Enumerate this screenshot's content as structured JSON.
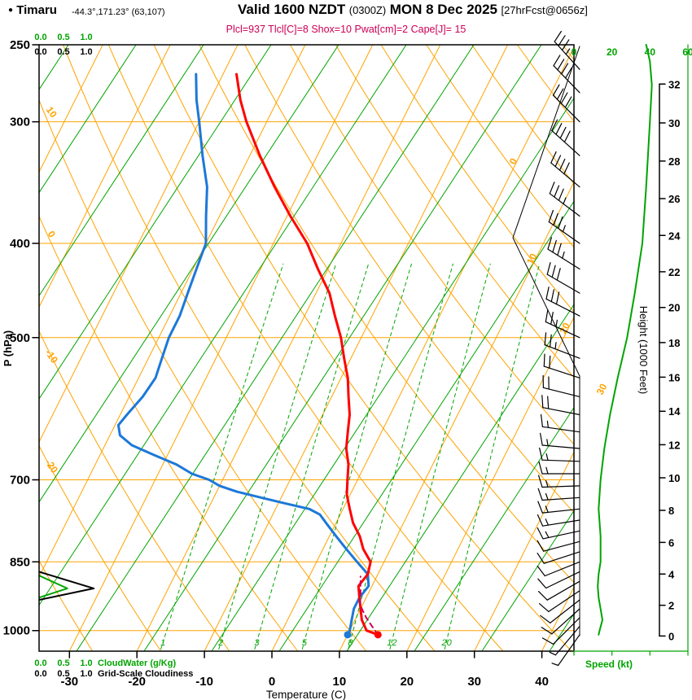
{
  "header": {
    "station": "Timaru",
    "coords": "-44.3°,171.23° (63,107)",
    "valid_prefix": "Valid 1600 NZDT",
    "valid_utc": "(0300Z)",
    "valid_date": "MON 8 Dec 2025",
    "fcst_tag": "[27hrFcst@0656z]",
    "params": "Plcl=937 Tlcl[C]=8 Shox=10 Pwat[cm]=2 Cape[J]= 15"
  },
  "axes": {
    "pressure_label": "P (hPa)",
    "pressure_ticks": [
      250,
      300,
      400,
      500,
      700,
      850,
      1000
    ],
    "temperature_label": "Temperature (C)",
    "temperature_ticks": [
      -30,
      -20,
      -10,
      0,
      10,
      20,
      30,
      40
    ],
    "height_label": "Height (1000 Feet)",
    "height_ticks": [
      0,
      2,
      4,
      6,
      8,
      10,
      12,
      14,
      16,
      18,
      20,
      22,
      24,
      26,
      28,
      30,
      32
    ],
    "speed_label": "Speed (kt)",
    "speed_ticks": [
      0,
      20,
      40,
      60
    ],
    "cloudwater_label": "CloudWater (g/Kg)",
    "cloudiness_label": "Grid-Scale Cloudiness",
    "cloud_scale_ticks": [
      "0.0",
      "0.5",
      "1.0"
    ],
    "dry_adiabat_labels": [
      10,
      0,
      -10,
      -20
    ],
    "isotherm_labels": [
      0,
      10,
      20,
      30
    ],
    "mixing_ratio_labels": [
      1,
      2,
      3,
      5,
      8,
      12,
      20
    ]
  },
  "colors": {
    "grid_orange": "#FFA300",
    "green": "#00A400",
    "temperature_red": "#FF0000",
    "dewpoint_blue": "#1C78D8",
    "parcel_crimson": "#CC0055",
    "black": "#000000",
    "background": "#FFFFFF"
  },
  "chart_data": {
    "type": "line",
    "subtype": "skew-t-log-p-sounding",
    "title": "Timaru atmospheric sounding",
    "pressure_axis_hpa": [
      1050,
      250
    ],
    "temperature_axis_c": [
      -35,
      45
    ],
    "height_axis_kft": [
      0,
      32
    ],
    "speed_axis_kt": [
      0,
      60
    ],
    "series": [
      {
        "name": "temperature_c",
        "points": [
          [
            1010,
            14.5
          ],
          [
            1000,
            12.5
          ],
          [
            975,
            11
          ],
          [
            950,
            10
          ],
          [
            925,
            9
          ],
          [
            900,
            8
          ],
          [
            875,
            8.5
          ],
          [
            850,
            8
          ],
          [
            825,
            6
          ],
          [
            800,
            4.5
          ],
          [
            775,
            2.5
          ],
          [
            750,
            1
          ],
          [
            725,
            -0.5
          ],
          [
            700,
            -1.5
          ],
          [
            675,
            -2.5
          ],
          [
            650,
            -4
          ],
          [
            625,
            -5
          ],
          [
            600,
            -6
          ],
          [
            575,
            -7.5
          ],
          [
            550,
            -9
          ],
          [
            525,
            -11
          ],
          [
            500,
            -13
          ],
          [
            475,
            -15.5
          ],
          [
            450,
            -18
          ],
          [
            425,
            -21.5
          ],
          [
            400,
            -25
          ],
          [
            375,
            -29.5
          ],
          [
            350,
            -34
          ],
          [
            325,
            -38.5
          ],
          [
            300,
            -43
          ],
          [
            285,
            -45.5
          ],
          [
            268,
            -48
          ]
        ]
      },
      {
        "name": "dewpoint_c",
        "points": [
          [
            1010,
            10
          ],
          [
            1000,
            10
          ],
          [
            975,
            9.5
          ],
          [
            950,
            9
          ],
          [
            925,
            9
          ],
          [
            900,
            9.5
          ],
          [
            875,
            8.5
          ],
          [
            850,
            6
          ],
          [
            825,
            3.5
          ],
          [
            800,
            1
          ],
          [
            775,
            -1.5
          ],
          [
            760,
            -3
          ],
          [
            750,
            -5
          ],
          [
            740,
            -9
          ],
          [
            730,
            -13
          ],
          [
            720,
            -17
          ],
          [
            710,
            -20
          ],
          [
            700,
            -22
          ],
          [
            690,
            -25
          ],
          [
            675,
            -28
          ],
          [
            660,
            -32
          ],
          [
            645,
            -36
          ],
          [
            630,
            -38.5
          ],
          [
            615,
            -39.5
          ],
          [
            600,
            -39
          ],
          [
            575,
            -38
          ],
          [
            550,
            -37.5
          ],
          [
            525,
            -38
          ],
          [
            500,
            -38.5
          ],
          [
            475,
            -38.5
          ],
          [
            450,
            -39
          ],
          [
            425,
            -39.5
          ],
          [
            400,
            -40
          ],
          [
            375,
            -42
          ],
          [
            350,
            -44
          ],
          [
            325,
            -47
          ],
          [
            300,
            -50
          ],
          [
            285,
            -52
          ],
          [
            268,
            -54
          ]
        ]
      },
      {
        "name": "parcel_path_c",
        "points": [
          [
            1010,
            14.5
          ],
          [
            990,
            13
          ],
          [
            970,
            11.5
          ],
          [
            950,
            10.2
          ],
          [
            937,
            9.5
          ],
          [
            920,
            9
          ],
          [
            900,
            8.3
          ],
          [
            880,
            7.6
          ]
        ]
      },
      {
        "name": "wind_speed_kt",
        "points": [
          [
            1010,
            13
          ],
          [
            1000,
            13.5
          ],
          [
            975,
            15
          ],
          [
            950,
            14
          ],
          [
            925,
            13
          ],
          [
            900,
            12.5
          ],
          [
            875,
            13
          ],
          [
            850,
            14
          ],
          [
            800,
            14
          ],
          [
            750,
            13
          ],
          [
            700,
            14
          ],
          [
            650,
            16
          ],
          [
            600,
            19
          ],
          [
            550,
            23
          ],
          [
            500,
            28
          ],
          [
            450,
            32
          ],
          [
            400,
            36
          ],
          [
            350,
            38
          ],
          [
            300,
            40
          ],
          [
            275,
            41
          ],
          [
            260,
            40
          ],
          [
            250,
            38
          ]
        ]
      }
    ],
    "wind_barbs_p_spd_dir": [
      [
        1010,
        6,
        215
      ],
      [
        990,
        7,
        220
      ],
      [
        970,
        8,
        225
      ],
      [
        950,
        9,
        228
      ],
      [
        930,
        9,
        232
      ],
      [
        910,
        10,
        236
      ],
      [
        890,
        10,
        240
      ],
      [
        870,
        11,
        244
      ],
      [
        850,
        12,
        248
      ],
      [
        830,
        12,
        252
      ],
      [
        810,
        12,
        255
      ],
      [
        790,
        13,
        258
      ],
      [
        770,
        13,
        261
      ],
      [
        750,
        13,
        264
      ],
      [
        730,
        14,
        266
      ],
      [
        710,
        14,
        268
      ],
      [
        690,
        14,
        270
      ],
      [
        670,
        15,
        272
      ],
      [
        650,
        16,
        275
      ],
      [
        625,
        17,
        278
      ],
      [
        600,
        19,
        281
      ],
      [
        575,
        20,
        284
      ],
      [
        550,
        22,
        288
      ],
      [
        525,
        24,
        291
      ],
      [
        500,
        27,
        295
      ],
      [
        475,
        29,
        297
      ],
      [
        450,
        31,
        300
      ],
      [
        425,
        33,
        302
      ],
      [
        400,
        35,
        305
      ],
      [
        375,
        36,
        307
      ],
      [
        350,
        38,
        310
      ],
      [
        325,
        39,
        312
      ],
      [
        300,
        40,
        315
      ],
      [
        280,
        38,
        316
      ],
      [
        265,
        36,
        318
      ]
    ],
    "cloudiness_profile": [
      [
        870,
        0
      ],
      [
        905,
        1.2
      ],
      [
        930,
        0
      ]
    ],
    "cloudwater_profile": [
      [
        878,
        0
      ],
      [
        905,
        0.62
      ],
      [
        925,
        0
      ]
    ]
  }
}
